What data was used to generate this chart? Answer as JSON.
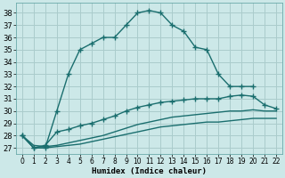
{
  "title": "",
  "xlabel": "Humidex (Indice chaleur)",
  "ylabel": "",
  "background_color": "#cce8e8",
  "grid_color": "#aacccc",
  "line_color": "#1a6e6e",
  "xlim": [
    -0.5,
    22.5
  ],
  "ylim": [
    26.5,
    38.8
  ],
  "xticks": [
    0,
    1,
    2,
    3,
    4,
    5,
    6,
    7,
    8,
    9,
    10,
    11,
    12,
    13,
    14,
    15,
    16,
    17,
    18,
    19,
    20,
    21,
    22
  ],
  "yticks": [
    27,
    28,
    29,
    30,
    31,
    32,
    33,
    34,
    35,
    36,
    37,
    38
  ],
  "series": [
    {
      "x": [
        0,
        1,
        2,
        3,
        4,
        5,
        6,
        7,
        8,
        9,
        10,
        11,
        12,
        13,
        14,
        15,
        16,
        17,
        18,
        19,
        20
      ],
      "y": [
        28,
        27,
        27,
        30,
        33,
        35,
        35.5,
        36,
        36,
        37,
        38,
        38.2,
        38,
        37,
        36.5,
        35.2,
        35,
        33,
        32,
        32,
        32
      ],
      "marker": true
    },
    {
      "x": [
        0,
        1,
        2,
        3,
        4,
        5,
        6,
        7,
        8,
        9,
        10,
        11,
        12,
        13,
        14,
        15,
        16,
        17,
        18,
        19,
        20,
        21,
        22
      ],
      "y": [
        28,
        27,
        27.2,
        28.3,
        28.5,
        28.8,
        29,
        29.3,
        29.6,
        30,
        30.3,
        30.5,
        30.7,
        30.8,
        30.9,
        31,
        31,
        31,
        31.2,
        31.3,
        31.2,
        30.5,
        30.2
      ],
      "marker": true
    },
    {
      "x": [
        0,
        1,
        2,
        3,
        4,
        5,
        6,
        7,
        8,
        9,
        10,
        11,
        12,
        13,
        14,
        15,
        16,
        17,
        18,
        19,
        20,
        21,
        22
      ],
      "y": [
        28,
        27.2,
        27.1,
        27.2,
        27.4,
        27.6,
        27.8,
        28.0,
        28.3,
        28.6,
        28.9,
        29.1,
        29.3,
        29.5,
        29.6,
        29.7,
        29.8,
        29.9,
        30.0,
        30.0,
        30.1,
        30.0,
        30.0
      ],
      "marker": false
    },
    {
      "x": [
        0,
        1,
        2,
        3,
        4,
        5,
        6,
        7,
        8,
        9,
        10,
        11,
        12,
        13,
        14,
        15,
        16,
        17,
        18,
        19,
        20,
        21,
        22
      ],
      "y": [
        28,
        27.0,
        27.0,
        27.1,
        27.2,
        27.3,
        27.5,
        27.7,
        27.9,
        28.1,
        28.3,
        28.5,
        28.7,
        28.8,
        28.9,
        29.0,
        29.1,
        29.1,
        29.2,
        29.3,
        29.4,
        29.4,
        29.4
      ],
      "marker": false
    }
  ]
}
